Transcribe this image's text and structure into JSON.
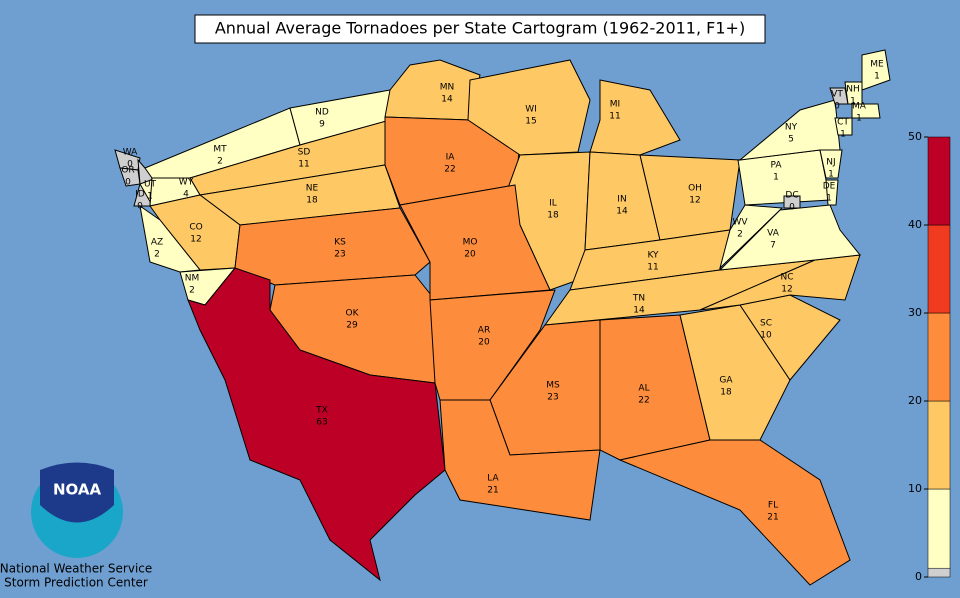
{
  "map": {
    "title": "Annual Average Tornadoes per State Cartogram (1962-2011, F1+)",
    "states": [
      {
        "abbr": "WA",
        "value": 0
      },
      {
        "abbr": "OR",
        "value": 0
      },
      {
        "abbr": "ID",
        "value": 0
      },
      {
        "abbr": "UT",
        "value": 1
      },
      {
        "abbr": "MT",
        "value": 2
      },
      {
        "abbr": "ND",
        "value": 9
      },
      {
        "abbr": "SD",
        "value": 11
      },
      {
        "abbr": "WY",
        "value": 4
      },
      {
        "abbr": "NE",
        "value": 18
      },
      {
        "abbr": "CO",
        "value": 12
      },
      {
        "abbr": "AZ",
        "value": 2
      },
      {
        "abbr": "NM",
        "value": 2
      },
      {
        "abbr": "KS",
        "value": 23
      },
      {
        "abbr": "OK",
        "value": 29
      },
      {
        "abbr": "TX",
        "value": 63
      },
      {
        "abbr": "MN",
        "value": 14
      },
      {
        "abbr": "IA",
        "value": 22
      },
      {
        "abbr": "WI",
        "value": 15
      },
      {
        "abbr": "MI",
        "value": 11
      },
      {
        "abbr": "IL",
        "value": 18
      },
      {
        "abbr": "MO",
        "value": 20
      },
      {
        "abbr": "IN",
        "value": 14
      },
      {
        "abbr": "OH",
        "value": 12
      },
      {
        "abbr": "KY",
        "value": 11
      },
      {
        "abbr": "AR",
        "value": 20
      },
      {
        "abbr": "TN",
        "value": 14
      },
      {
        "abbr": "MS",
        "value": 23
      },
      {
        "abbr": "AL",
        "value": 22
      },
      {
        "abbr": "GA",
        "value": 18
      },
      {
        "abbr": "LA",
        "value": 21
      },
      {
        "abbr": "FL",
        "value": 21
      },
      {
        "abbr": "SC",
        "value": 10
      },
      {
        "abbr": "NC",
        "value": 12
      },
      {
        "abbr": "VA",
        "value": 7
      },
      {
        "abbr": "WV",
        "value": 2
      },
      {
        "abbr": "PA",
        "value": 1
      },
      {
        "abbr": "NY",
        "value": 5
      },
      {
        "abbr": "NJ",
        "value": 1
      },
      {
        "abbr": "DE",
        "value": 1
      },
      {
        "abbr": "DC",
        "value": 0
      },
      {
        "abbr": "CT",
        "value": 1
      },
      {
        "abbr": "MA",
        "value": 1
      },
      {
        "abbr": "VT",
        "value": 0
      },
      {
        "abbr": "NH",
        "value": 1
      },
      {
        "abbr": "ME",
        "value": 1
      }
    ],
    "colorbar": {
      "bounds": [
        0,
        1,
        10,
        20,
        30,
        40,
        50
      ],
      "colors": [
        "#cfcfcf",
        "#ffffc4",
        "#fec965",
        "#fd8d3c",
        "#f03b20",
        "#bd0026"
      ],
      "ylim": [
        0,
        50
      ],
      "yticks": [
        0,
        10,
        20,
        30,
        40,
        50
      ]
    },
    "logo": {
      "badge": "NOAA",
      "line1": "National Weather Service",
      "line2": "Storm Prediction Center"
    }
  }
}
